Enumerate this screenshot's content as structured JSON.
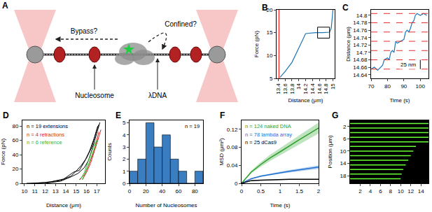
{
  "diagram": {
    "panel": "A",
    "labels": {
      "bypass": "Bypass?",
      "confined": "Confined?",
      "nucleosome": "Nucleosome",
      "dna": "λDNA"
    }
  },
  "chart_data": [
    {
      "panel": "B",
      "type": "line",
      "x_label": "Distance (μm)",
      "y_label": "Force (pN)",
      "xlim": [
        13.35,
        15.05
      ],
      "xticks": [
        13.4,
        13.6,
        13.8,
        14,
        14.2,
        14.4,
        14.6,
        14.8,
        15
      ],
      "ylim": [
        5,
        20
      ],
      "yticks": [
        5,
        10,
        15,
        20
      ],
      "series": [
        {
          "color": "#ff2020",
          "x": [
            13.42,
            13.42
          ],
          "values": [
            5,
            20
          ]
        },
        {
          "color": "#1f77b4",
          "x": [
            13.45,
            13.6,
            13.8,
            13.9,
            14.0,
            14.1,
            14.2,
            14.3,
            14.5,
            14.7,
            14.9,
            14.95,
            15.0
          ],
          "values": [
            5.2,
            6.5,
            8.5,
            10,
            11.5,
            13.2,
            14.8,
            14.9,
            15,
            15,
            15.1,
            16,
            20
          ]
        }
      ],
      "zoom_box": {
        "x": [
          14.55,
          14.9
        ],
        "y": [
          13.8,
          16.2
        ]
      }
    },
    {
      "panel": "C",
      "type": "line",
      "x_label": "Time (s)",
      "y_label": "Distance (μm)",
      "xlim": [
        70,
        105
      ],
      "xticks": [
        70,
        80,
        90,
        100
      ],
      "ylim": [
        14.63,
        14.815
      ],
      "yticks": [
        14.64,
        14.66,
        14.68,
        14.7,
        14.72,
        14.74,
        14.76,
        14.78,
        14.8
      ],
      "series": [
        {
          "color": "#1f77b4",
          "x": [
            70,
            72,
            74,
            76,
            77,
            78,
            80,
            81,
            82,
            83,
            84,
            85,
            86,
            88,
            90,
            91,
            92,
            93,
            94,
            95,
            96,
            97,
            98,
            100,
            102,
            104
          ],
          "values": [
            14.655,
            14.66,
            14.652,
            14.66,
            14.665,
            14.68,
            14.685,
            14.68,
            14.7,
            14.705,
            14.7,
            14.73,
            14.725,
            14.73,
            14.735,
            14.755,
            14.76,
            14.755,
            14.765,
            14.78,
            14.785,
            14.8,
            14.805,
            14.8,
            14.805,
            14.8
          ]
        }
      ],
      "levels": {
        "values": [
          14.655,
          14.68,
          14.705,
          14.73,
          14.755,
          14.78,
          14.805
        ],
        "color": "#e03030",
        "line_style": "dashed"
      },
      "scale_bar": {
        "label": "25 nm",
        "x": 100,
        "from": 14.655,
        "to": 14.68
      }
    },
    {
      "panel": "D",
      "type": "line",
      "x_label": "Distance (μm)",
      "y_label": "Force (pN)",
      "xlim": [
        9.8,
        17.8
      ],
      "xticks": [
        10,
        11,
        12,
        13,
        14,
        15,
        16,
        17
      ],
      "ylim": [
        0,
        88
      ],
      "yticks": [
        0,
        20,
        40,
        60,
        80
      ],
      "series": [
        {
          "name": "n = 19 extensions",
          "color": "#000000",
          "curves": [
            {
              "x": [
                10.2,
                12,
                13.5,
                14.5,
                15,
                15.5,
                16,
                16.5,
                17,
                17.2
              ],
              "values": [
                0,
                1,
                4,
                10,
                17,
                25,
                35,
                50,
                75,
                82
              ]
            },
            {
              "x": [
                11,
                12.5,
                13.8,
                14.8,
                15.3,
                15.8,
                16.3,
                16.8,
                17.1
              ],
              "values": [
                0,
                2,
                6,
                16,
                18,
                30,
                45,
                65,
                80
              ]
            },
            {
              "x": [
                12,
                13.5,
                14.5,
                15.2,
                15.8,
                16.2,
                16.6,
                17,
                17.3
              ],
              "values": [
                0,
                3,
                9,
                14,
                22,
                32,
                50,
                70,
                85
              ]
            }
          ]
        },
        {
          "name": "n = 4 retractions",
          "color": "#e02020",
          "curves": [
            {
              "x": [
                15.3,
                15.8,
                16.2,
                16.6,
                16.9,
                17.2
              ],
              "values": [
                5,
                12,
                25,
                40,
                55,
                72
              ]
            },
            {
              "x": [
                15.6,
                16,
                16.4,
                16.8,
                17.1,
                17.4
              ],
              "values": [
                5,
                15,
                28,
                45,
                60,
                75
              ]
            }
          ]
        },
        {
          "name": "n = 6 reference",
          "color": "#33b833",
          "curves": [
            {
              "x": [
                15.4,
                15.8,
                16.1,
                16.4,
                16.7,
                17
              ],
              "values": [
                5,
                15,
                28,
                40,
                52,
                60
              ]
            },
            {
              "x": [
                15.6,
                16,
                16.3,
                16.6,
                16.9,
                17.1
              ],
              "values": [
                5,
                18,
                30,
                42,
                55,
                62
              ]
            }
          ]
        }
      ]
    },
    {
      "panel": "E",
      "type": "histogram",
      "x_label": "Number of Nucleosomes",
      "y_label": "Counts",
      "annotation": "n = 19",
      "color": "#3a7dc0",
      "bins": [
        0,
        10,
        20,
        30,
        40,
        50,
        60,
        70,
        80,
        90
      ],
      "counts": [
        1,
        2,
        5,
        3,
        4,
        2,
        1,
        0,
        1
      ],
      "xlim": [
        0,
        90
      ],
      "xticks": [
        0,
        20,
        40,
        60,
        80
      ],
      "ylim": [
        0,
        5.2
      ],
      "yticks": [
        0,
        1,
        2,
        3,
        4,
        5
      ]
    },
    {
      "panel": "F",
      "type": "line",
      "x_label": "Time (s)",
      "y_label": "MSD (μm²)",
      "xlim": [
        0,
        2
      ],
      "xticks": [
        0,
        0.5,
        1,
        1.5,
        2
      ],
      "ylim": [
        0,
        0.14
      ],
      "yticks": [
        0,
        0.04,
        0.08,
        0.12
      ],
      "x": [
        0,
        0.25,
        0.5,
        0.75,
        1,
        1.25,
        1.5,
        1.75,
        2
      ],
      "series": [
        {
          "name": "n = 124 naked DNA",
          "color": "#2ca02c",
          "values": [
            0,
            0.025,
            0.042,
            0.057,
            0.07,
            0.084,
            0.097,
            0.11,
            0.123
          ],
          "error": [
            0,
            0.003,
            0.005,
            0.007,
            0.008,
            0.009,
            0.01,
            0.011,
            0.012
          ]
        },
        {
          "name": "n = 78 lambda array",
          "color": "#1f6fd0",
          "values": [
            0,
            0.01,
            0.016,
            0.02,
            0.024,
            0.027,
            0.03,
            0.033,
            0.036
          ],
          "error": [
            0,
            0.001,
            0.0015,
            0.002,
            0.0025,
            0.003,
            0.003,
            0.0035,
            0.004
          ]
        },
        {
          "name": "n = 25 dCas9",
          "color": "#000000",
          "values": [
            0,
            0.006,
            0.007,
            0.008,
            0.008,
            0.009,
            0.009,
            0.009,
            0.009
          ],
          "error": [
            0,
            0.0005,
            0.0005,
            0.0005,
            0.0005,
            0.0005,
            0.0005,
            0.0005,
            0.0005
          ]
        }
      ]
    },
    {
      "panel": "G",
      "type": "line",
      "y_label": "Position (μm)",
      "color": "#66ff33",
      "xlim": [
        0,
        15.5
      ],
      "xticks": [
        2,
        4,
        6,
        8,
        10,
        12,
        14
      ],
      "ylim": [
        20.5,
        0
      ],
      "yticks": [
        2,
        6,
        10,
        14,
        18
      ],
      "series": [
        {
          "x": [
            0,
            15.5
          ],
          "values": [
            1,
            1
          ]
        },
        {
          "x": [
            0,
            15.5
          ],
          "values": [
            2.5,
            2.5
          ]
        },
        {
          "x": [
            0,
            15.5
          ],
          "values": [
            4,
            4
          ]
        },
        {
          "x": [
            0,
            15.5
          ],
          "values": [
            5.5,
            5.5
          ]
        },
        {
          "x": [
            0,
            15.5
          ],
          "values": [
            7,
            7
          ]
        },
        {
          "x": [
            0,
            13
          ],
          "values": [
            8.5,
            8.5
          ]
        },
        {
          "x": [
            0,
            12.5
          ],
          "values": [
            10,
            10
          ]
        },
        {
          "x": [
            0,
            12
          ],
          "values": [
            11.5,
            11.5
          ]
        },
        {
          "x": [
            0,
            11.5
          ],
          "values": [
            13,
            13
          ]
        },
        {
          "x": [
            0,
            11
          ],
          "values": [
            14.5,
            14.5
          ]
        },
        {
          "x": [
            0,
            10.5
          ],
          "values": [
            16,
            16
          ]
        },
        {
          "x": [
            0,
            10.2
          ],
          "values": [
            17.5,
            17.5
          ]
        },
        {
          "x": [
            0,
            10
          ],
          "values": [
            19,
            19
          ]
        }
      ]
    }
  ]
}
